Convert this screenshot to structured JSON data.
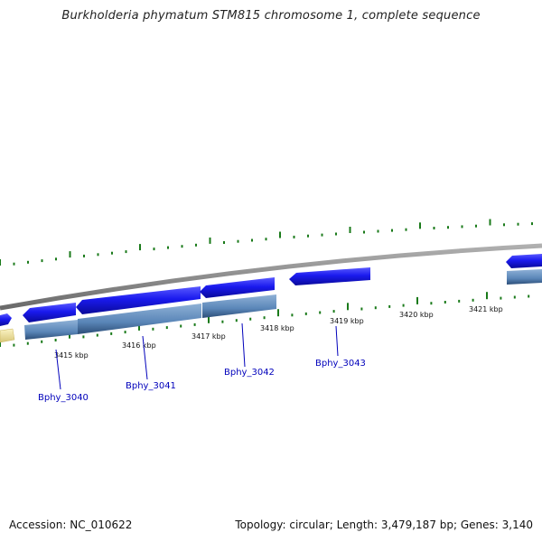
{
  "title": "Burkholderia phymatum STM815 chromosome 1, complete sequence",
  "colors": {
    "backbone": "#8a8a8a",
    "gene_forward": "#1a1aee",
    "cds_forward": "#5a86b8",
    "gene_neighbor": "#f3e6a0",
    "tick": "#1a7a1a",
    "label": "#0000bb"
  },
  "scale_labels": [
    "3415 kbp",
    "3416 kbp",
    "3417 kbp",
    "3418 kbp",
    "3419 kbp",
    "3420 kbp",
    "3421 kbp"
  ],
  "gene_labels": [
    "Bphy_3040",
    "Bphy_3041",
    "Bphy_3042",
    "Bphy_3043"
  ],
  "footer": {
    "accession": "Accession: NC_010622",
    "summary": "Topology: circular; Length: 3,479,187 bp; Genes: 3,140"
  }
}
